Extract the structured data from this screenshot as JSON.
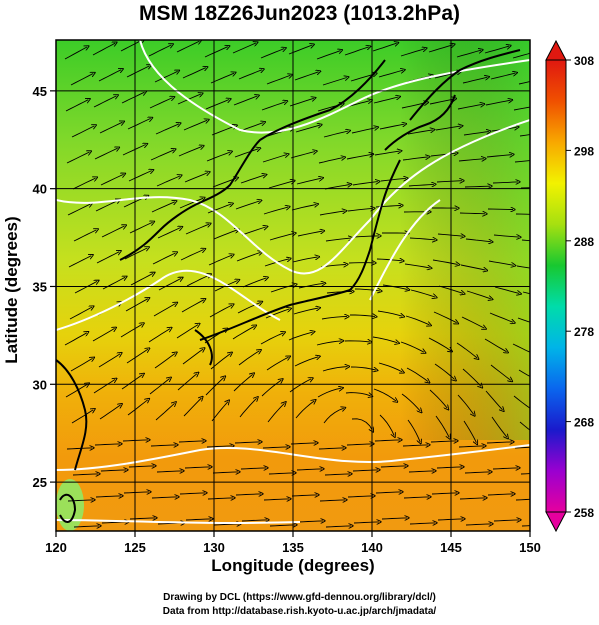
{
  "title": "MSM 18Z26Jun2023 (1013.2hPa)",
  "axes": {
    "xlabel": "Longitude (degrees)",
    "ylabel": "Latitude  (degrees)",
    "xlim": [
      120,
      150
    ],
    "ylim": [
      22.5,
      47.6
    ],
    "xticks": [
      "120",
      "125",
      "130",
      "135",
      "140",
      "145",
      "150"
    ],
    "yticks": [
      "25",
      "30",
      "35",
      "40",
      "45"
    ]
  },
  "colorbar": {
    "min": 258,
    "max": 308,
    "ticks": [
      "308",
      "298",
      "288",
      "278",
      "268",
      "258"
    ],
    "colors": [
      "#e6009e",
      "#9a00d0",
      "#1a1acc",
      "#0a66ee",
      "#00b4e8",
      "#00dcaa",
      "#18c830",
      "#a6e010",
      "#f2f200",
      "#f8a800",
      "#f05000",
      "#e01810"
    ]
  },
  "credits": {
    "line1": "Drawing by DCL (https://www.gfd-dennou.org/library/dcl/)",
    "line2": "Data from http://database.rish.kyoto-u.ac.jp/arch/jmadata/"
  },
  "map": {
    "field": "potential-temperature-with-streamlines",
    "contour_color": "#ffffff",
    "coast_color": "#000000"
  }
}
